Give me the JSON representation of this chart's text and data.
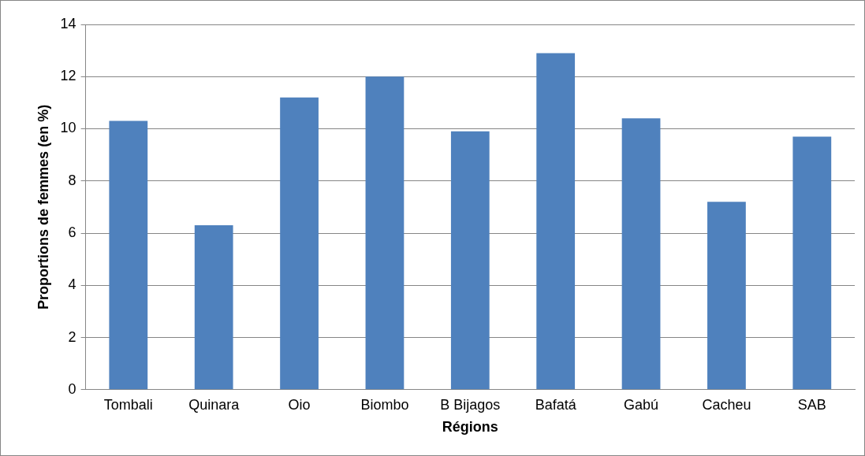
{
  "chart_data": {
    "type": "bar",
    "xlabel": "Régions",
    "ylabel": "Proportions de femmes (en %)",
    "categories": [
      "Tombali",
      "Quinara",
      "Oio",
      "Biombo",
      "B Bijagos",
      "Bafatá",
      "Gabú",
      "Cacheu",
      "SAB"
    ],
    "values": [
      10.3,
      6.3,
      11.2,
      12.0,
      9.9,
      12.9,
      10.4,
      7.2,
      9.7
    ],
    "color": "#4f81bd",
    "ylim": [
      0,
      14
    ],
    "yticks": [
      0,
      2,
      4,
      6,
      8,
      10,
      12,
      14
    ],
    "grid": "y",
    "legend": false
  }
}
